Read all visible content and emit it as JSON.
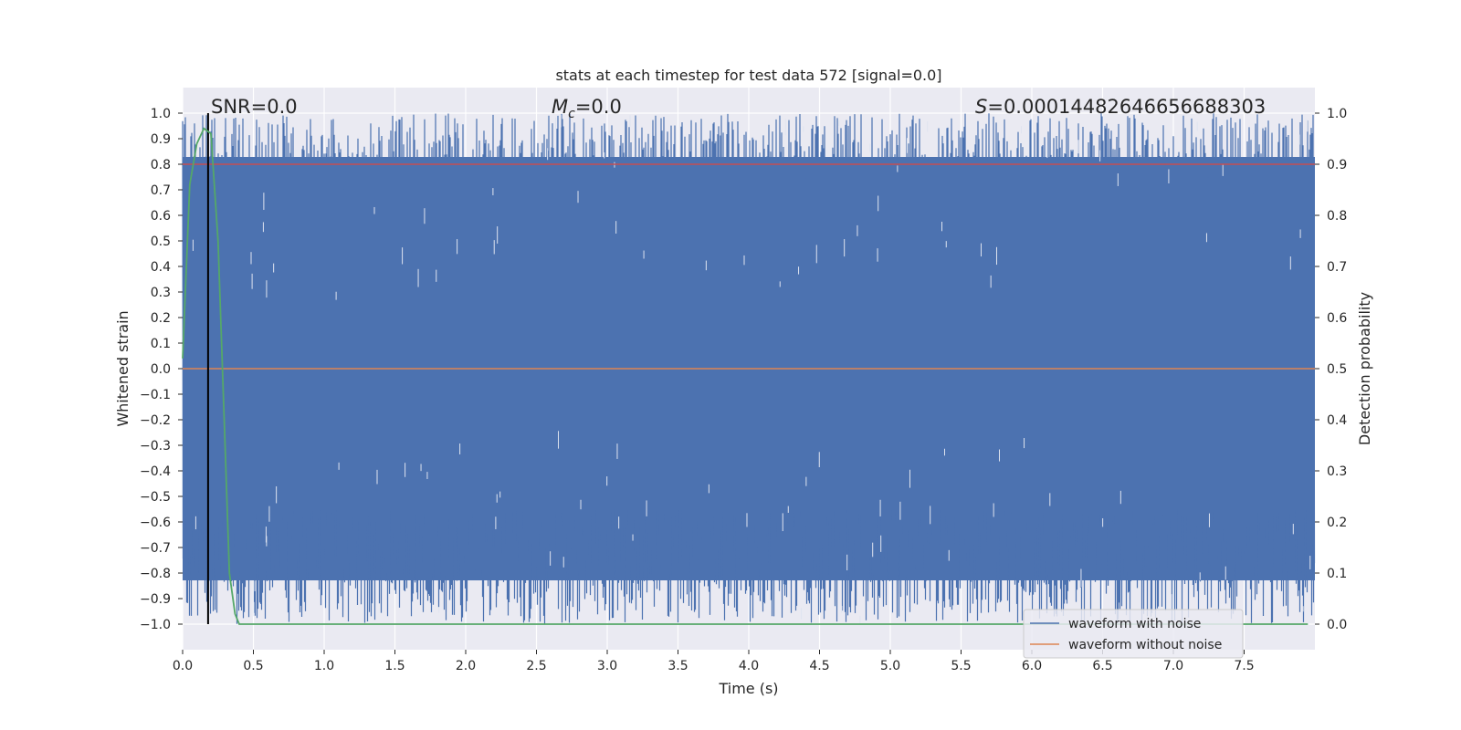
{
  "chart_data": {
    "type": "line",
    "title": "stats at each timestep for test data 572 [signal=0.0]",
    "xlabel": "Time (s)",
    "ylabel_left": "Whitened strain",
    "ylabel_right": "Detection probability",
    "xlim": [
      0.0,
      8.0
    ],
    "ylim_left": [
      -1.1,
      1.1
    ],
    "ylim_right": [
      -0.05,
      1.05
    ],
    "x_ticks": [
      "0.0",
      "0.5",
      "1.0",
      "1.5",
      "2.0",
      "2.5",
      "3.0",
      "3.5",
      "4.0",
      "4.5",
      "5.0",
      "5.5",
      "6.0",
      "6.5",
      "7.0",
      "7.5"
    ],
    "y_ticks_left": [
      "1.0",
      "0.9",
      "0.8",
      "0.7",
      "0.6",
      "0.5",
      "0.4",
      "0.3",
      "0.2",
      "0.1",
      "0.0",
      "−0.1",
      "−0.2",
      "−0.3",
      "−0.4",
      "−0.5",
      "−0.6",
      "−0.7",
      "−0.8",
      "−0.9",
      "−1.0"
    ],
    "y_ticks_right": [
      "1.0",
      "0.9",
      "0.8",
      "0.7",
      "0.6",
      "0.5",
      "0.4",
      "0.3",
      "0.2",
      "0.1",
      "0.0"
    ],
    "grid": true,
    "legend_position": "lower-right",
    "annotations": {
      "snr": "SNR=0.0",
      "mc_symbol": "M",
      "mc_sub": "c",
      "mc_value": "=0.0",
      "s_symbol": "S",
      "s_value": "=0.00014482646656688303"
    },
    "series": [
      {
        "name": "waveform with noise",
        "color": "#4c72b0",
        "axis": "left",
        "noise_envelope": [
          -1.0,
          1.0
        ]
      },
      {
        "name": "waveform without noise",
        "color": "#dd8452",
        "axis": "left",
        "constant_value": 0.0
      },
      {
        "color": "#55a868",
        "axis": "right",
        "x": [
          0.0,
          0.05,
          0.1,
          0.15,
          0.2,
          0.25,
          0.3,
          0.33,
          0.37,
          0.4,
          7.95
        ],
        "values": [
          0.52,
          0.86,
          0.94,
          0.97,
          0.96,
          0.75,
          0.35,
          0.1,
          0.02,
          0.0,
          0.0
        ]
      },
      {
        "color": "#c44e52",
        "axis": "right",
        "constant_value": 0.9
      },
      {
        "color": "#000000",
        "axis": "left",
        "vertical_x": 0.18
      }
    ]
  }
}
